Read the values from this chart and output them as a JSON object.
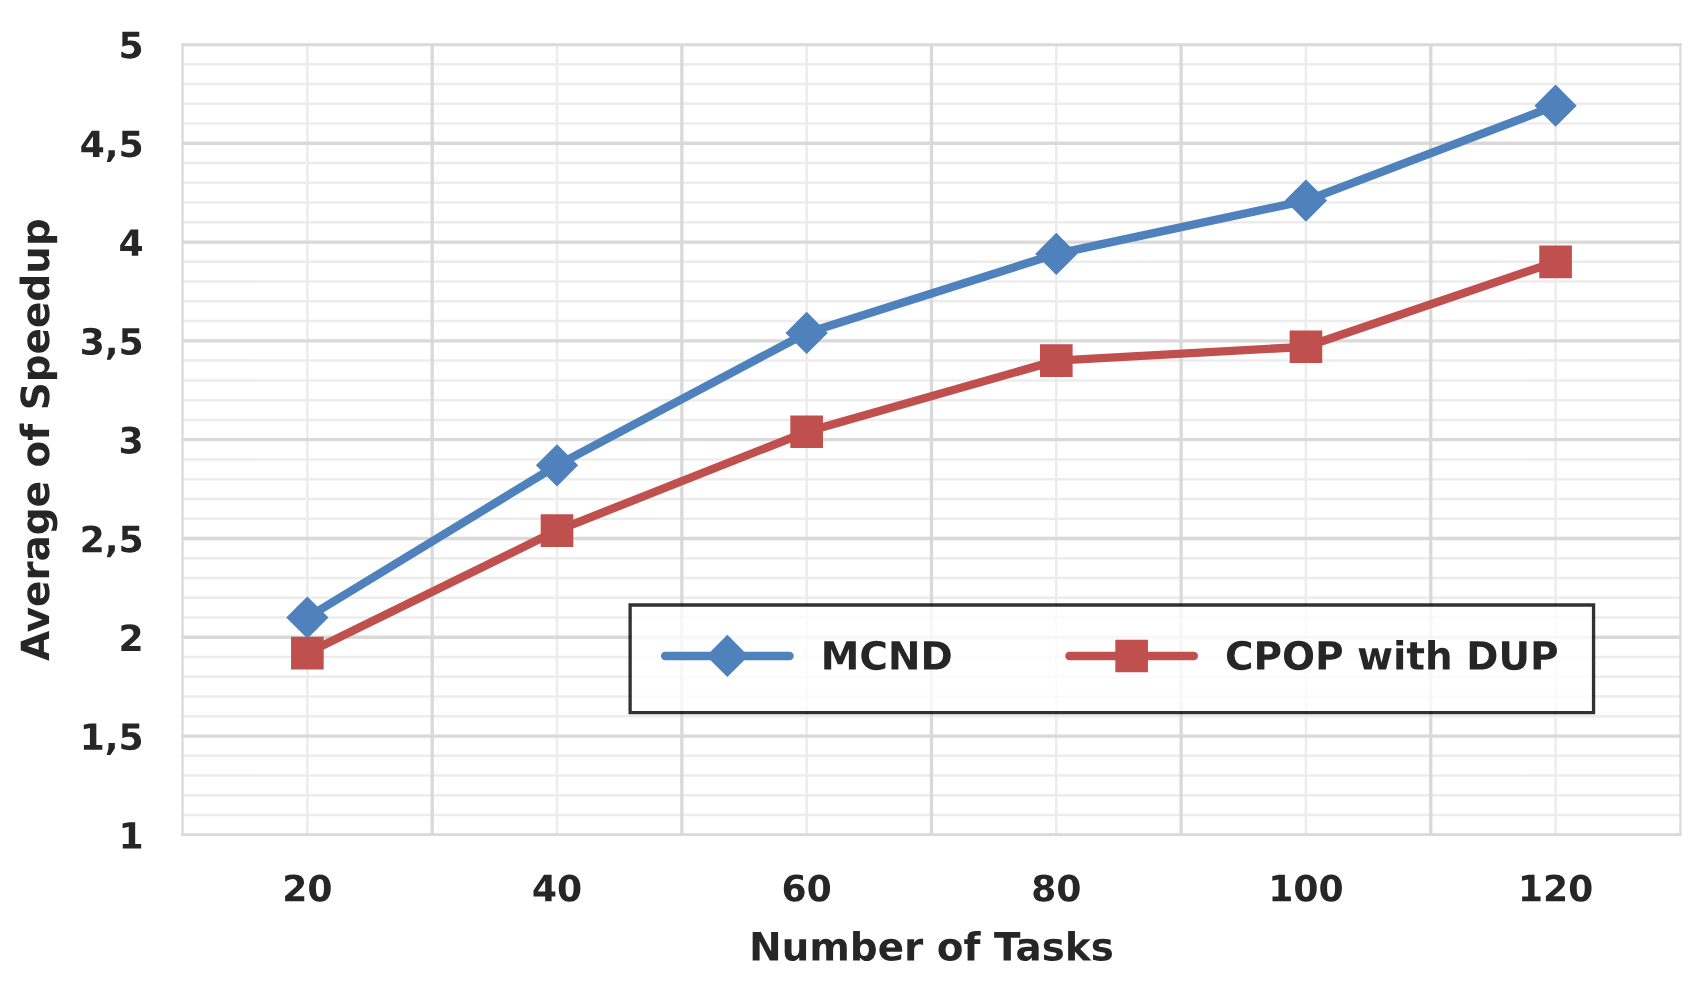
{
  "chart_data": {
    "type": "line",
    "xlabel": "Number of Tasks",
    "ylabel": "Average of Speedup",
    "categories": [
      "20",
      "40",
      "60",
      "80",
      "100",
      "120"
    ],
    "series": [
      {
        "name": "MCND",
        "color": "#4f81bd",
        "marker": "diamond",
        "values": [
          2.1,
          2.87,
          3.54,
          3.94,
          4.21,
          4.69
        ]
      },
      {
        "name": "CPOP with DUP",
        "color": "#c0504d",
        "marker": "square",
        "values": [
          1.92,
          2.54,
          3.04,
          3.4,
          3.47,
          3.9
        ]
      }
    ],
    "ylim": [
      1,
      5
    ],
    "yticks": [
      1,
      {
        "value": 1.5,
        "label": "1,5"
      },
      2,
      {
        "value": 2.5,
        "label": "2,5"
      },
      3,
      {
        "value": 3.5,
        "label": "3,5"
      },
      4,
      {
        "value": 4.5,
        "label": "4,5"
      },
      5
    ],
    "grid": true,
    "legend": "bottom right",
    "line_style": "solid"
  }
}
